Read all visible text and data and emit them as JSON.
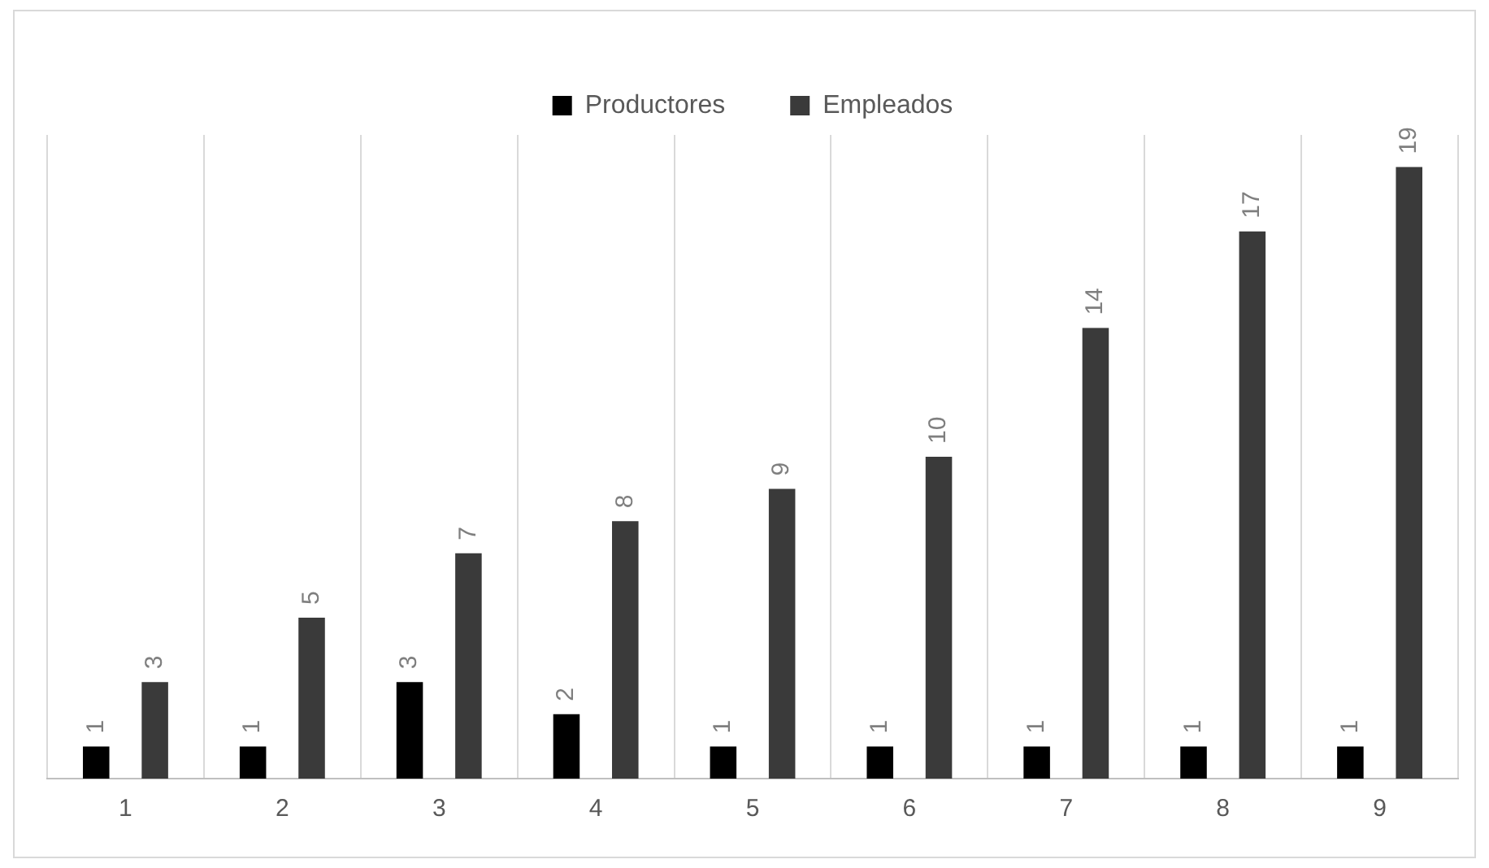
{
  "chart_data": {
    "type": "bar",
    "categories": [
      "1",
      "2",
      "3",
      "4",
      "5",
      "6",
      "7",
      "8",
      "9"
    ],
    "series": [
      {
        "name": "Productores",
        "color": "#000000",
        "values": [
          1,
          1,
          3,
          2,
          1,
          1,
          1,
          1,
          1
        ]
      },
      {
        "name": "Empleados",
        "color": "#3a3a3a",
        "values": [
          3,
          5,
          7,
          8,
          9,
          10,
          14,
          17,
          19
        ]
      }
    ],
    "data_labels": true,
    "grid": "x",
    "legend": "top"
  }
}
